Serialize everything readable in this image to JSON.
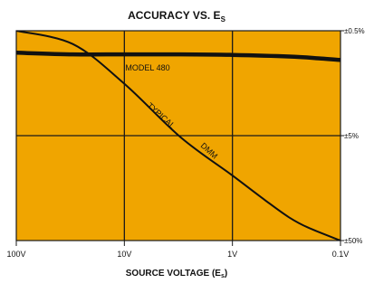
{
  "chart_data": {
    "type": "line",
    "title": "ACCURACY VS. E",
    "title_subscript": "S",
    "xlabel": "SOURCE VOLTAGE (E",
    "xlabel_subscript": "s",
    "xlabel_suffix": ")",
    "x_scale": "log",
    "x_direction": "decreasing",
    "x_ticks": [
      {
        "value": 100,
        "label": "100V"
      },
      {
        "value": 10,
        "label": "10V"
      },
      {
        "value": 1,
        "label": "1V"
      },
      {
        "value": 0.1,
        "label": "0.1V"
      }
    ],
    "y_scale": "log",
    "y_ticks": [
      {
        "value": 0.5,
        "label": "±0.5%"
      },
      {
        "value": 5,
        "label": "±5%"
      },
      {
        "value": 50,
        "label": "±50%"
      }
    ],
    "xlim": [
      100,
      0.1
    ],
    "ylim": [
      0.5,
      50
    ],
    "grid": true,
    "background_color": "#f0a500",
    "line_color": "#111111",
    "series": [
      {
        "name": "MODEL 480",
        "x": [
          100,
          30,
          10,
          3,
          1,
          0.3,
          0.15,
          0.1
        ],
        "y": [
          0.81,
          0.84,
          0.84,
          0.84,
          0.85,
          0.88,
          0.92,
          0.95
        ]
      },
      {
        "name": "TYPICAL DMM",
        "x": [
          100,
          30,
          10,
          3,
          1,
          0.5,
          0.3,
          0.2,
          0.1
        ],
        "y": [
          0.5,
          0.67,
          1.6,
          5.2,
          12,
          20.6,
          30,
          37.6,
          50
        ]
      }
    ],
    "annotations": [
      {
        "text": "MODEL 480",
        "series": "MODEL 480"
      },
      {
        "text": "TYPICAL",
        "series": "TYPICAL DMM"
      },
      {
        "text": "DMM",
        "series": "TYPICAL DMM"
      }
    ]
  }
}
